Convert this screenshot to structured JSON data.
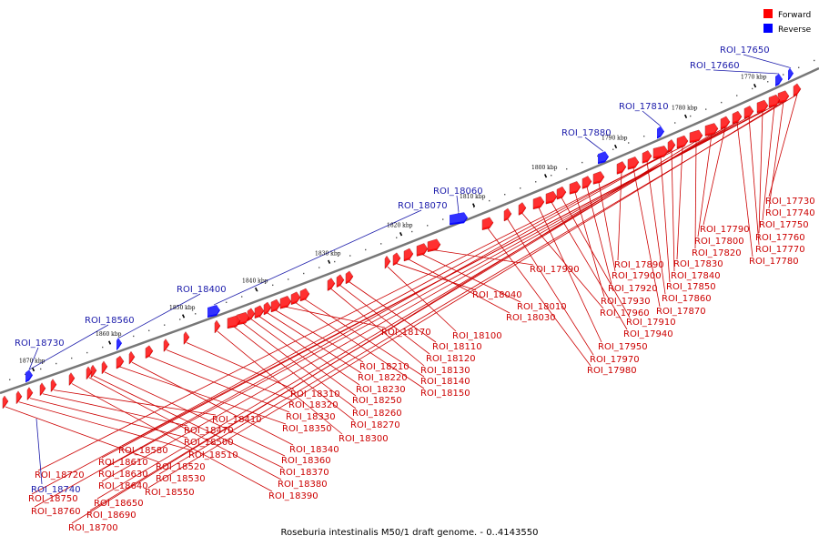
{
  "caption": "Roseburia intestinalis M50/1 draft genome. - 0..4143550",
  "legend": {
    "forward": {
      "label": "Forward",
      "color": "#ff0000"
    },
    "reverse": {
      "label": "Reverse",
      "color": "#0000ff"
    }
  },
  "colors": {
    "backbone": "#777777",
    "label_forward": "#cc0000",
    "label_reverse": "#1a1aaa"
  },
  "ticks": [
    "1770 kbp",
    "1780 kbp",
    "1790 kbp",
    "1800 kbp",
    "1810 kbp",
    "1820 kbp",
    "1830 kbp",
    "1840 kbp",
    "1850 kbp",
    "1860 kbp",
    "1870 kbp"
  ],
  "reverse_labels": [
    "ROI_17650",
    "ROI_17660",
    "ROI_17810",
    "ROI_17880",
    "ROI_18060",
    "ROI_18070",
    "ROI_18400",
    "ROI_18560",
    "ROI_18730"
  ],
  "forward_labels": [
    "ROI_17730",
    "ROI_17740",
    "ROI_17750",
    "ROI_17760",
    "ROI_17770",
    "ROI_17780",
    "ROI_17790",
    "ROI_17800",
    "ROI_17820",
    "ROI_17830",
    "ROI_17840",
    "ROI_17850",
    "ROI_17860",
    "ROI_17870",
    "ROI_17890",
    "ROI_17900",
    "ROI_17920",
    "ROI_17930",
    "ROI_17910",
    "ROI_17940",
    "ROI_17950",
    "ROI_17960",
    "ROI_17970",
    "ROI_17980",
    "ROI_17990",
    "ROI_18010",
    "ROI_18030",
    "ROI_18040",
    "ROI_18100",
    "ROI_18110",
    "ROI_18120",
    "ROI_18130",
    "ROI_18140",
    "ROI_18150",
    "ROI_18170",
    "ROI_18210",
    "ROI_18220",
    "ROI_18230",
    "ROI_18250",
    "ROI_18260",
    "ROI_18270",
    "ROI_18300",
    "ROI_18310",
    "ROI_18320",
    "ROI_18330",
    "ROI_18340",
    "ROI_18350",
    "ROI_18360",
    "ROI_18370",
    "ROI_18380",
    "ROI_18390",
    "ROI_18410",
    "ROI_18470",
    "ROI_18500",
    "ROI_18510",
    "ROI_18520",
    "ROI_18530",
    "ROI_18550",
    "ROI_18580",
    "ROI_18610",
    "ROI_18630",
    "ROI_18640",
    "ROI_18650",
    "ROI_18690",
    "ROI_18700",
    "ROI_18720",
    "ROI_18750",
    "ROI_18760"
  ],
  "reverse_strand_label_below": "ROI_18740"
}
